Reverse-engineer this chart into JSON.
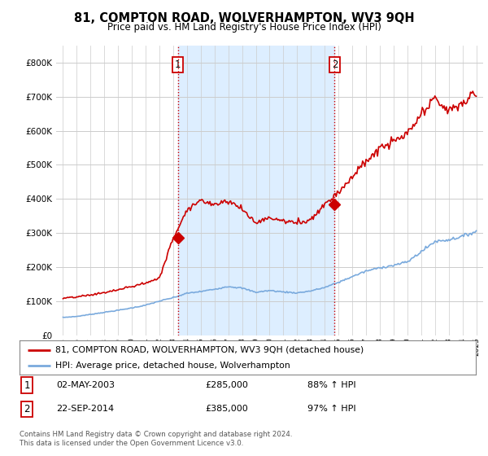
{
  "title": "81, COMPTON ROAD, WOLVERHAMPTON, WV3 9QH",
  "subtitle": "Price paid vs. HM Land Registry's House Price Index (HPI)",
  "legend_line1": "81, COMPTON ROAD, WOLVERHAMPTON, WV3 9QH (detached house)",
  "legend_line2": "HPI: Average price, detached house, Wolverhampton",
  "transaction1_date": "02-MAY-2003",
  "transaction1_price": "£285,000",
  "transaction1_hpi": "88% ↑ HPI",
  "transaction2_date": "22-SEP-2014",
  "transaction2_price": "£385,000",
  "transaction2_hpi": "97% ↑ HPI",
  "footnote": "Contains HM Land Registry data © Crown copyright and database right 2024.\nThis data is licensed under the Open Government Licence v3.0.",
  "red_color": "#cc0000",
  "blue_color": "#7aaadd",
  "shade_color": "#ddeeff",
  "background_color": "#ffffff",
  "grid_color": "#cccccc",
  "ylim": [
    0,
    850000
  ],
  "yticks": [
    0,
    100000,
    200000,
    300000,
    400000,
    500000,
    600000,
    700000,
    800000
  ],
  "transaction1_x": 2003.33,
  "transaction2_x": 2014.72
}
